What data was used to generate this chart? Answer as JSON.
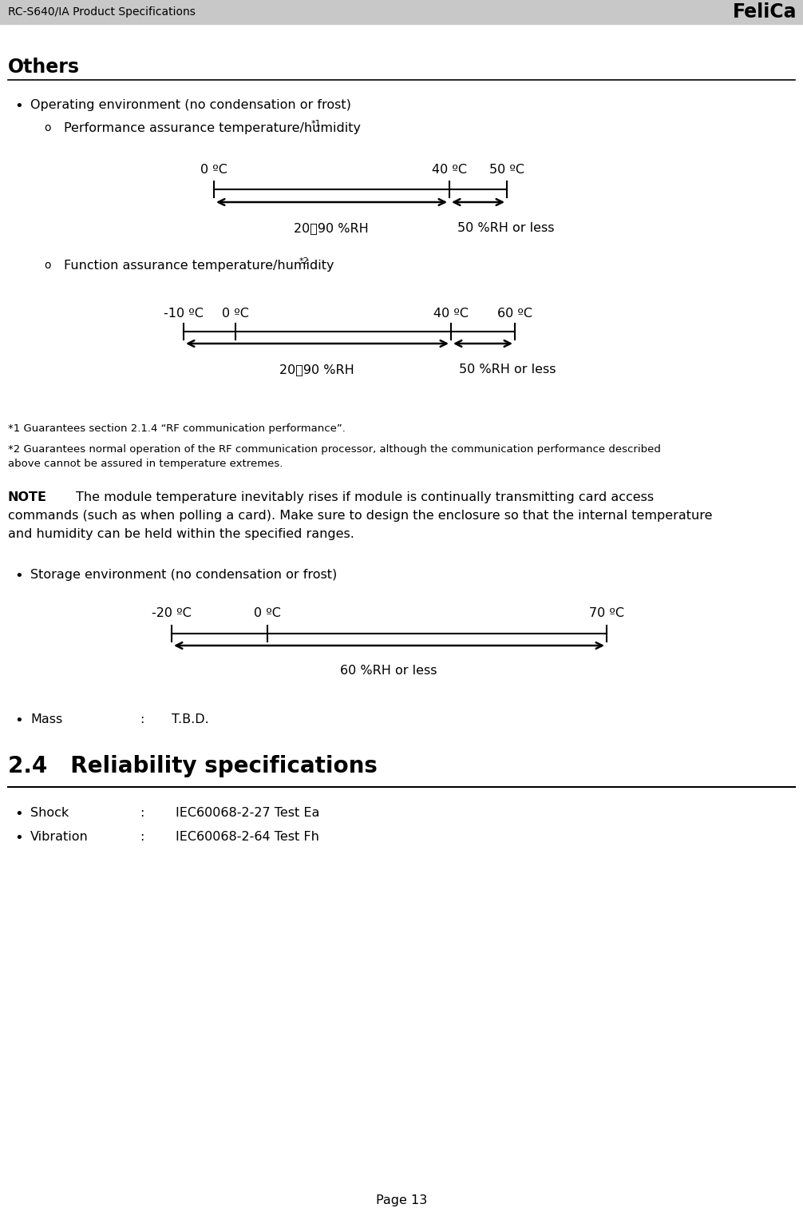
{
  "title_header": "RC-S640/IA Product Specifications",
  "felica_logo": "FeliCa",
  "page_num": "Page 13",
  "section_title": "Others",
  "section_24_title": "2.4   Reliability specifications",
  "bg_header_color": "#c8c8c8",
  "text_color": "#000000",
  "bullet_items": [
    "Operating environment (no condensation or frost)",
    "Storage environment (no condensation or frost)"
  ],
  "sub_item1": "Performance assurance temperature/humidity",
  "sub_item1_sup": "*1",
  "sub_item2": "Function assurance temperature/humidity",
  "sub_item2_sup": "*2",
  "chart1_labels_top": [
    "0 ºC",
    "40 ºC",
    "50 ºC"
  ],
  "chart1_label_bottom_left": "20～90 %RH",
  "chart1_label_bottom_right": "50 %RH or less",
  "chart2_labels_top": [
    "-10 ºC",
    "0 ºC",
    "40 ºC",
    "60 ºC"
  ],
  "chart2_label_bottom_left": "20～90 %RH",
  "chart2_label_bottom_right": "50 %RH or less",
  "chart3_labels_top": [
    "-20 ºC",
    "0 ºC",
    "70 ºC"
  ],
  "chart3_label_bottom": "60 %RH or less",
  "note1": "*1 Guarantees section 2.1.4 “RF communication performance”.",
  "note2_line1": "*2 Guarantees normal operation of the RF communication processor, although the communication performance described",
  "note2_line2": "above cannot be assured in temperature extremes.",
  "note_bold": "NOTE",
  "note_text_line1": "The module temperature inevitably rises if module is continually transmitting card access",
  "note_text_line2": "commands (such as when polling a card). Make sure to design the enclosure so that the internal temperature",
  "note_text_line3": "and humidity can be held within the specified ranges.",
  "mass_label": "Mass",
  "mass_colon": ":",
  "mass_value": "T.B.D.",
  "shock_label": "Shock",
  "shock_colon": ":",
  "shock_value": "IEC60068-2-27 Test Ea",
  "vibration_label": "Vibration",
  "vibration_colon": ":",
  "vibration_value": "IEC60068-2-64 Test Fh"
}
